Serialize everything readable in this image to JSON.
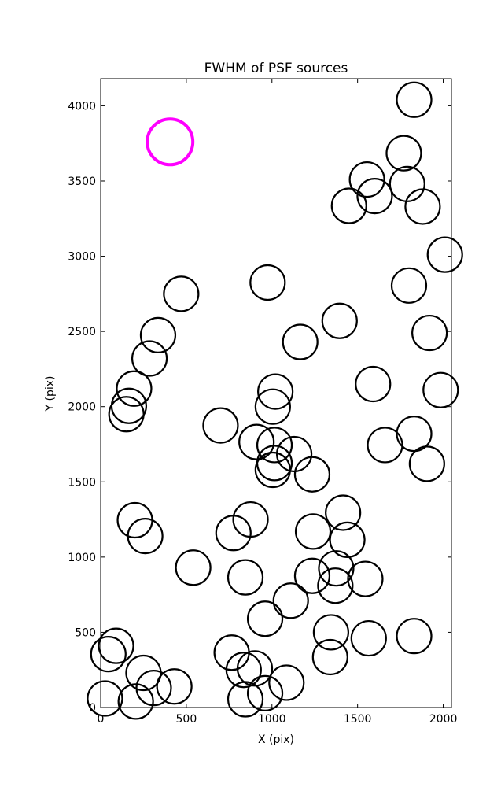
{
  "chart_data": {
    "type": "scatter",
    "title": "FWHM of PSF sources",
    "xlabel": "X (pix)",
    "ylabel": "Y (pix)",
    "xlim": [
      0,
      2048
    ],
    "ylim": [
      0,
      4180
    ],
    "xticks": [
      0,
      500,
      1000,
      1500,
      2000
    ],
    "yticks": [
      0,
      500,
      1000,
      1500,
      2000,
      2500,
      3000,
      3500,
      4000
    ],
    "grid": false,
    "marker": "open circle",
    "series": [
      {
        "color": "#000000",
        "points": [
          {
            "x": 1830,
            "y": 4040
          },
          {
            "x": 1770,
            "y": 3685
          },
          {
            "x": 1555,
            "y": 3510
          },
          {
            "x": 1790,
            "y": 3480
          },
          {
            "x": 1600,
            "y": 3400
          },
          {
            "x": 1450,
            "y": 3335
          },
          {
            "x": 1880,
            "y": 3330
          },
          {
            "x": 2010,
            "y": 3010
          },
          {
            "x": 1800,
            "y": 2805
          },
          {
            "x": 975,
            "y": 2825
          },
          {
            "x": 470,
            "y": 2750
          },
          {
            "x": 1395,
            "y": 2570
          },
          {
            "x": 1920,
            "y": 2490
          },
          {
            "x": 335,
            "y": 2475
          },
          {
            "x": 1165,
            "y": 2430
          },
          {
            "x": 285,
            "y": 2320
          },
          {
            "x": 1590,
            "y": 2150
          },
          {
            "x": 1985,
            "y": 2110
          },
          {
            "x": 195,
            "y": 2120
          },
          {
            "x": 1020,
            "y": 2100
          },
          {
            "x": 165,
            "y": 2005
          },
          {
            "x": 1005,
            "y": 2000
          },
          {
            "x": 150,
            "y": 1950
          },
          {
            "x": 700,
            "y": 1875
          },
          {
            "x": 1830,
            "y": 1820
          },
          {
            "x": 910,
            "y": 1765
          },
          {
            "x": 1015,
            "y": 1745
          },
          {
            "x": 1660,
            "y": 1745
          },
          {
            "x": 1130,
            "y": 1685
          },
          {
            "x": 1015,
            "y": 1625
          },
          {
            "x": 1905,
            "y": 1620
          },
          {
            "x": 1005,
            "y": 1580
          },
          {
            "x": 1235,
            "y": 1550
          },
          {
            "x": 1415,
            "y": 1295
          },
          {
            "x": 875,
            "y": 1250
          },
          {
            "x": 200,
            "y": 1245
          },
          {
            "x": 1240,
            "y": 1170
          },
          {
            "x": 775,
            "y": 1160
          },
          {
            "x": 260,
            "y": 1140
          },
          {
            "x": 1440,
            "y": 1115
          },
          {
            "x": 540,
            "y": 930
          },
          {
            "x": 1375,
            "y": 925
          },
          {
            "x": 1235,
            "y": 875
          },
          {
            "x": 845,
            "y": 865
          },
          {
            "x": 1545,
            "y": 855
          },
          {
            "x": 1370,
            "y": 810
          },
          {
            "x": 1110,
            "y": 710
          },
          {
            "x": 960,
            "y": 590
          },
          {
            "x": 1345,
            "y": 500
          },
          {
            "x": 1830,
            "y": 475
          },
          {
            "x": 1565,
            "y": 460
          },
          {
            "x": 90,
            "y": 410
          },
          {
            "x": 45,
            "y": 355
          },
          {
            "x": 765,
            "y": 365
          },
          {
            "x": 1340,
            "y": 335
          },
          {
            "x": 900,
            "y": 260
          },
          {
            "x": 835,
            "y": 250
          },
          {
            "x": 250,
            "y": 230
          },
          {
            "x": 1085,
            "y": 165
          },
          {
            "x": 430,
            "y": 140
          },
          {
            "x": 310,
            "y": 130
          },
          {
            "x": 960,
            "y": 95
          },
          {
            "x": 25,
            "y": 60
          },
          {
            "x": 845,
            "y": 55
          },
          {
            "x": 205,
            "y": 40
          }
        ]
      },
      {
        "color": "#ff00ff",
        "points": [
          {
            "x": 405,
            "y": 3760
          }
        ]
      }
    ]
  }
}
